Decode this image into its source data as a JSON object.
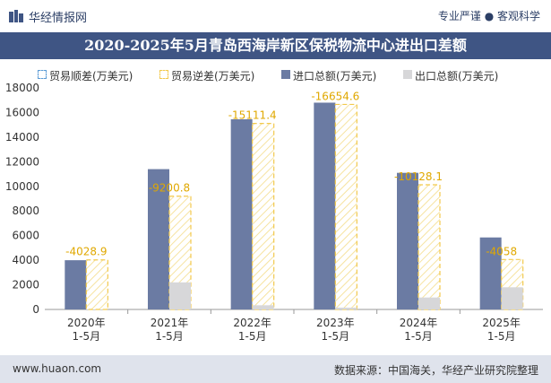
{
  "header": {
    "brand": "华经情报网",
    "slogan": "专业严谨 ● 客观科学",
    "title": "2020-2025年5月青岛西海岸新区保税物流中心进出口差额"
  },
  "footer": {
    "site": "www.huaon.com",
    "source": "数据来源：中国海关，华经产业研究院整理"
  },
  "colors": {
    "header_bg": "#3f5584",
    "import": "#6b7ba3",
    "export": "#d7d7d9",
    "deficit_border": "#f2c94c",
    "surplus_border": "#5b9bd5",
    "footer_bg": "#dfe3ec"
  },
  "chart_data": {
    "type": "bar",
    "categories": [
      [
        "2020年",
        "1-5月"
      ],
      [
        "2021年",
        "1-5月"
      ],
      [
        "2022年",
        "1-5月"
      ],
      [
        "2023年",
        "1-5月"
      ],
      [
        "2024年",
        "1-5月"
      ],
      [
        "2025年",
        "1-5月"
      ]
    ],
    "series": [
      {
        "name": "贸易顺差(万美元)",
        "values": [
          null,
          null,
          null,
          null,
          null,
          null
        ]
      },
      {
        "name": "贸易逆差(万美元)",
        "values": [
          -4028.9,
          -9200.8,
          -15111.4,
          -16654.6,
          -10128.1,
          -4058
        ]
      },
      {
        "name": "进口总额(万美元)",
        "values": [
          4000,
          11400,
          15450,
          16800,
          11100,
          5850
        ]
      },
      {
        "name": "出口总额(万美元)",
        "values": [
          0,
          2200,
          340,
          145,
          970,
          1800
        ]
      }
    ],
    "data_labels": [
      "-4028.9",
      "-9200.8",
      "-15111.4",
      "-16654.6",
      "-10128.1",
      "-4058"
    ],
    "yticks": [
      "0",
      "2000",
      "4000",
      "6000",
      "8000",
      "10000",
      "12000",
      "14000",
      "16000",
      "18000"
    ],
    "ylim": [
      0,
      18000
    ],
    "grid": false,
    "legend": "top"
  }
}
